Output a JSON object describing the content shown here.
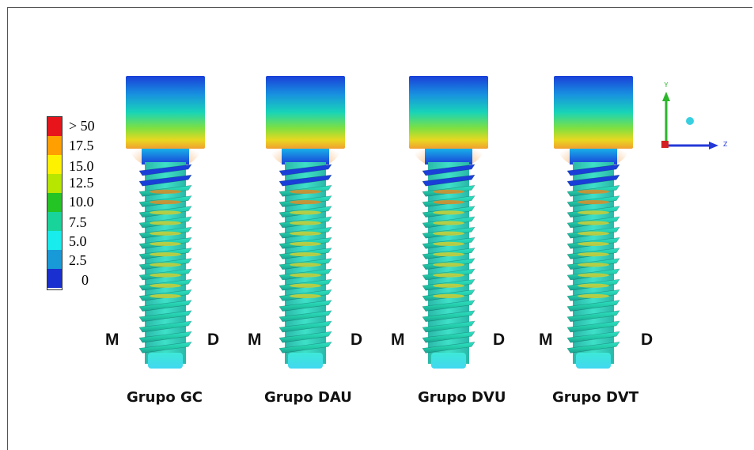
{
  "legend": {
    "entries": [
      {
        "label": "> 50",
        "color": "#e8141b"
      },
      {
        "label": "17.5",
        "color": "#ff9f00"
      },
      {
        "label": "15.0",
        "color": "#fff200"
      },
      {
        "label": "12.5",
        "color": "#b7e600"
      },
      {
        "label": "10.0",
        "color": "#23c423"
      },
      {
        "label": "7.5",
        "color": "#18d49a"
      },
      {
        "label": "5.0",
        "color": "#18ecec"
      },
      {
        "label": "2.5",
        "color": "#189ad8"
      },
      {
        "label": "0",
        "color": "#1a2fd0"
      }
    ]
  },
  "groups": [
    {
      "name": "Grupo GC",
      "mesial": "M",
      "distal": "D"
    },
    {
      "name": "Grupo DAU",
      "mesial": "M",
      "distal": "D"
    },
    {
      "name": "Grupo DVU",
      "mesial": "M",
      "distal": "D"
    },
    {
      "name": "Grupo DVT",
      "mesial": "M",
      "distal": "D"
    }
  ],
  "axes": {
    "y_label": "Y",
    "z_label": "Z"
  }
}
